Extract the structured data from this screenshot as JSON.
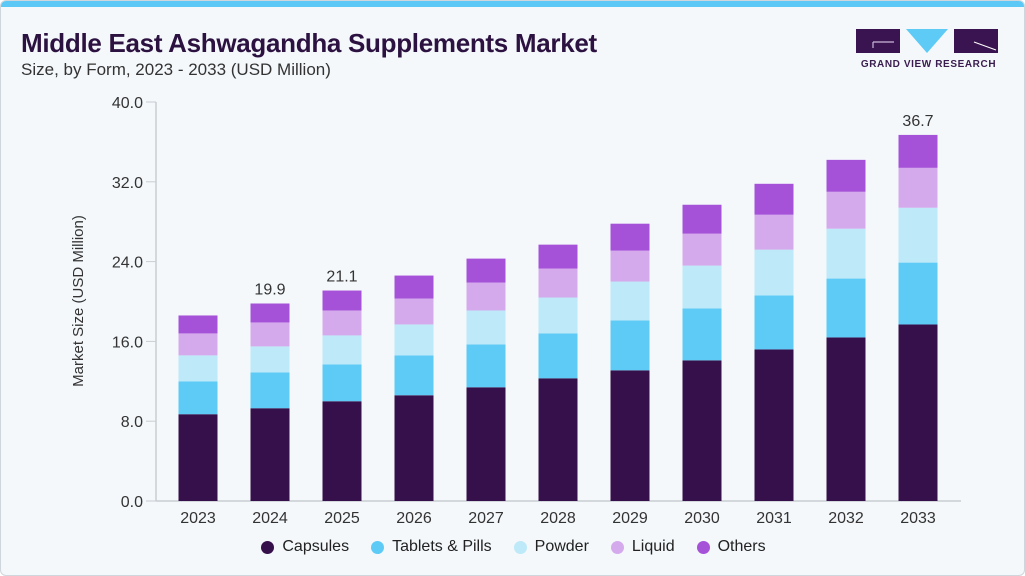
{
  "header": {
    "title": "Middle East Ashwagandha Supplements Market",
    "subtitle": "Size, by Form, 2023 - 2033 (USD Million)"
  },
  "logo": {
    "text": "GRAND VIEW RESEARCH"
  },
  "chart_data": {
    "type": "bar",
    "stacked": true,
    "ylabel": "Market Size (USD Million)",
    "xlabel": "",
    "ylim": [
      0,
      40
    ],
    "yticks": [
      "0.0",
      "8.0",
      "16.0",
      "24.0",
      "32.0",
      "40.0"
    ],
    "grid": false,
    "legend_position": "bottom",
    "categories": [
      "2023",
      "2024",
      "2025",
      "2026",
      "2027",
      "2028",
      "2029",
      "2030",
      "2031",
      "2032",
      "2033"
    ],
    "series": [
      {
        "name": "Capsules",
        "color": "#36104a",
        "values": [
          8.7,
          9.3,
          10.0,
          10.6,
          11.4,
          12.3,
          13.1,
          14.1,
          15.2,
          16.4,
          17.7
        ]
      },
      {
        "name": "Tablets & Pills",
        "color": "#5ecbf6",
        "values": [
          3.3,
          3.6,
          3.7,
          4.0,
          4.3,
          4.5,
          5.0,
          5.2,
          5.4,
          5.9,
          6.2
        ]
      },
      {
        "name": "Powder",
        "color": "#bde9f8",
        "values": [
          2.6,
          2.6,
          2.9,
          3.1,
          3.4,
          3.6,
          3.9,
          4.3,
          4.6,
          5.0,
          5.5
        ]
      },
      {
        "name": "Liquid",
        "color": "#d4aaec",
        "values": [
          2.2,
          2.4,
          2.5,
          2.6,
          2.8,
          2.9,
          3.1,
          3.2,
          3.5,
          3.7,
          4.0
        ]
      },
      {
        "name": "Others",
        "color": "#a652d8",
        "values": [
          1.8,
          1.9,
          2.0,
          2.3,
          2.4,
          2.4,
          2.7,
          2.9,
          3.1,
          3.2,
          3.3
        ]
      }
    ],
    "data_labels": {
      "2024": "19.9",
      "2025": "21.1",
      "2033": "36.7"
    }
  }
}
